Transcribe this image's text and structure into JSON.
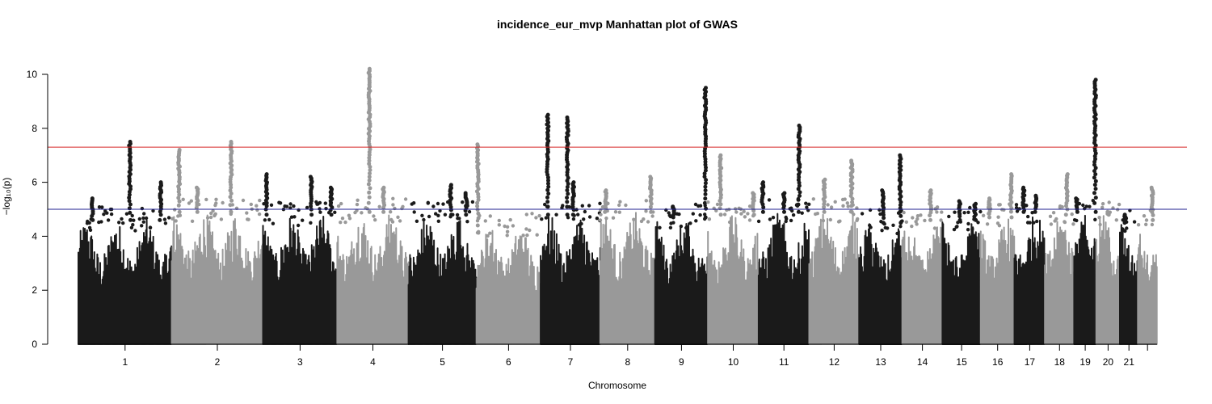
{
  "chart_data": {
    "type": "scatter",
    "title": "incidence_eur_mvp Manhattan plot of GWAS",
    "xlabel": "Chromosome",
    "ylabel": "−log₁₀(p)",
    "ylim": [
      0,
      10.2
    ],
    "y_ticks": [
      0,
      2,
      4,
      6,
      8,
      10
    ],
    "grid": false,
    "legend": "none",
    "colors": {
      "dark": "#1a1a1a",
      "light": "#999999",
      "genome_wide_line": "#d62728",
      "suggestive_line": "#1f1f8f"
    },
    "thresholds": {
      "genome_wide": 7.3,
      "suggestive": 5.0
    },
    "chromosomes": [
      {
        "label": "1",
        "length": 249,
        "ceiling": 4.6,
        "peaks": [
          [
            0.55,
            7.5
          ],
          [
            0.88,
            6.0
          ],
          [
            0.15,
            5.4
          ]
        ]
      },
      {
        "label": "2",
        "length": 243,
        "ceiling": 4.9,
        "peaks": [
          [
            0.08,
            7.2
          ],
          [
            0.65,
            7.5
          ],
          [
            0.28,
            5.8
          ]
        ]
      },
      {
        "label": "3",
        "length": 198,
        "ceiling": 4.8,
        "peaks": [
          [
            0.05,
            6.3
          ],
          [
            0.65,
            6.2
          ],
          [
            0.92,
            5.8
          ]
        ]
      },
      {
        "label": "4",
        "length": 190,
        "ceiling": 4.9,
        "peaks": [
          [
            0.45,
            10.2
          ],
          [
            0.65,
            5.8
          ]
        ]
      },
      {
        "label": "5",
        "length": 181,
        "ceiling": 4.8,
        "peaks": [
          [
            0.62,
            5.9
          ],
          [
            0.85,
            5.6
          ]
        ]
      },
      {
        "label": "6",
        "length": 171,
        "ceiling": 4.4,
        "peaks": [
          [
            0.02,
            7.4
          ]
        ]
      },
      {
        "label": "7",
        "length": 159,
        "ceiling": 4.8,
        "peaks": [
          [
            0.12,
            8.5
          ],
          [
            0.45,
            8.4
          ],
          [
            0.55,
            6.0
          ]
        ]
      },
      {
        "label": "8",
        "length": 146,
        "ceiling": 4.9,
        "peaks": [
          [
            0.1,
            5.7
          ],
          [
            0.92,
            6.2
          ]
        ]
      },
      {
        "label": "9",
        "length": 141,
        "ceiling": 4.7,
        "peaks": [
          [
            0.95,
            9.5
          ],
          [
            0.35,
            5.1
          ]
        ]
      },
      {
        "label": "10",
        "length": 135,
        "ceiling": 4.8,
        "peaks": [
          [
            0.25,
            7.0
          ],
          [
            0.9,
            5.6
          ]
        ]
      },
      {
        "label": "11",
        "length": 135,
        "ceiling": 4.9,
        "peaks": [
          [
            0.08,
            6.0
          ],
          [
            0.8,
            8.1
          ],
          [
            0.5,
            5.6
          ]
        ]
      },
      {
        "label": "12",
        "length": 133,
        "ceiling": 4.9,
        "peaks": [
          [
            0.3,
            6.1
          ],
          [
            0.85,
            6.8
          ]
        ]
      },
      {
        "label": "13",
        "length": 115,
        "ceiling": 4.5,
        "peaks": [
          [
            0.55,
            5.7
          ],
          [
            0.95,
            7.0
          ]
        ]
      },
      {
        "label": "14",
        "length": 107,
        "ceiling": 4.6,
        "peaks": [
          [
            0.7,
            5.7
          ]
        ]
      },
      {
        "label": "15",
        "length": 102,
        "ceiling": 4.6,
        "peaks": [
          [
            0.45,
            5.3
          ],
          [
            0.85,
            5.2
          ]
        ]
      },
      {
        "label": "16",
        "length": 90,
        "ceiling": 4.7,
        "peaks": [
          [
            0.25,
            5.4
          ],
          [
            0.9,
            6.3
          ]
        ]
      },
      {
        "label": "17",
        "length": 81,
        "ceiling": 4.9,
        "peaks": [
          [
            0.3,
            5.8
          ],
          [
            0.7,
            5.5
          ]
        ]
      },
      {
        "label": "18",
        "length": 78,
        "ceiling": 4.8,
        "peaks": [
          [
            0.75,
            6.3
          ]
        ]
      },
      {
        "label": "19",
        "length": 59,
        "ceiling": 4.9,
        "peaks": [
          [
            0.12,
            5.4
          ],
          [
            0.95,
            9.8
          ]
        ]
      },
      {
        "label": "20",
        "length": 63,
        "ceiling": 4.8,
        "peaks": [
          [
            0.5,
            4.9
          ]
        ]
      },
      {
        "label": "21",
        "length": 48,
        "ceiling": 4.5,
        "peaks": [
          [
            0.3,
            4.8
          ]
        ]
      },
      {
        "label": "",
        "length": 51,
        "ceiling": 4.6,
        "peaks": [
          [
            0.75,
            5.8
          ]
        ]
      }
    ]
  }
}
